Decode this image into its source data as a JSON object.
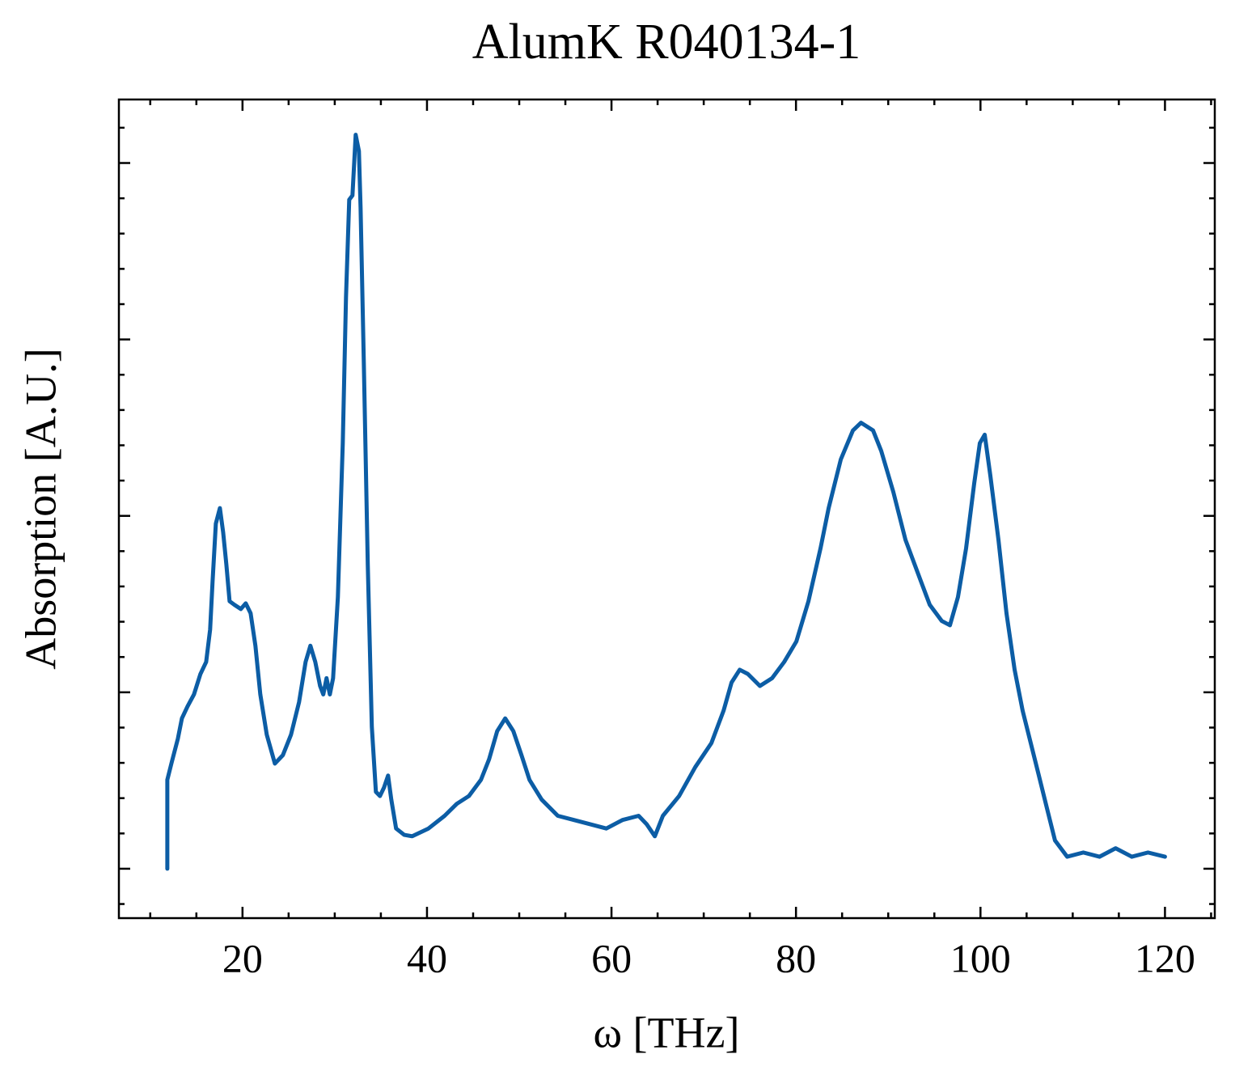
{
  "chart_data": {
    "type": "line",
    "title": "AlumK R040134-1",
    "x_label": "ω [THz]",
    "y_label": "Absorption [A.U.]",
    "xlim": [
      6.6,
      125.4
    ],
    "ylim": [
      -0.07,
      1.09
    ],
    "xticks": [
      20,
      40,
      60,
      80,
      100,
      120
    ],
    "xminorticks": [
      10,
      15,
      25,
      30,
      35,
      45,
      50,
      55,
      65,
      70,
      75,
      85,
      90,
      95,
      105,
      110,
      115,
      125
    ],
    "yticks": [
      0,
      0.25,
      0.5,
      0.75,
      1
    ],
    "yminorticks": [
      -0.05,
      0.05,
      0.1,
      0.15,
      0.2,
      0.3,
      0.35,
      0.4,
      0.45,
      0.55,
      0.6,
      0.65,
      0.7,
      0.8,
      0.85,
      0.9,
      0.95,
      1.05
    ],
    "y_tick_labels": false,
    "grid": false,
    "series": [
      {
        "color": "#0C5DA5",
        "x": [
          11.85,
          11.85,
          12.29,
          12.99,
          13.43,
          14.04,
          14.74,
          15.44,
          16.06,
          16.49,
          16.76,
          17.11,
          17.55,
          17.9,
          18.25,
          18.6,
          19.12,
          19.82,
          20.35,
          20.88,
          21.4,
          21.93,
          22.63,
          23.51,
          24.38,
          25.26,
          26.13,
          26.84,
          27.36,
          27.89,
          28.41,
          28.76,
          29.11,
          29.47,
          29.82,
          30.34,
          30.87,
          31.22,
          31.57,
          31.92,
          32.27,
          32.62,
          32.8,
          33.15,
          33.58,
          34.02,
          34.46,
          34.9,
          35.34,
          35.78,
          36.13,
          36.65,
          37.53,
          38.4,
          40.16,
          41.91,
          43.23,
          44.54,
          45.85,
          46.73,
          47.61,
          48.48,
          49.36,
          50.24,
          51.11,
          52.43,
          54.18,
          55.93,
          57.69,
          59.44,
          61.19,
          62.94,
          63.82,
          64.7,
          65.57,
          67.33,
          69.08,
          70.83,
          72.15,
          73.02,
          73.9,
          74.78,
          76.09,
          77.41,
          78.72,
          80.04,
          81.35,
          82.66,
          83.54,
          84.86,
          86.17,
          87.05,
          88.36,
          89.24,
          90.55,
          91.87,
          93.18,
          94.5,
          95.81,
          96.69,
          97.56,
          98.44,
          99.32,
          99.93,
          100.46,
          101.07,
          101.95,
          102.82,
          103.7,
          104.57,
          105.45,
          106.33,
          107.2,
          108.08,
          109.4,
          111.15,
          112.9,
          114.65,
          116.41,
          118.16,
          120
        ],
        "values": [
          0,
          0.126,
          0.149,
          0.184,
          0.213,
          0.23,
          0.247,
          0.276,
          0.293,
          0.339,
          0.408,
          0.489,
          0.511,
          0.477,
          0.431,
          0.379,
          0.374,
          0.368,
          0.376,
          0.362,
          0.316,
          0.247,
          0.19,
          0.149,
          0.161,
          0.19,
          0.236,
          0.293,
          0.316,
          0.293,
          0.259,
          0.247,
          0.27,
          0.247,
          0.27,
          0.385,
          0.603,
          0.81,
          0.948,
          0.954,
          1.04,
          1.017,
          0.937,
          0.718,
          0.431,
          0.201,
          0.109,
          0.103,
          0.115,
          0.132,
          0.098,
          0.057,
          0.048,
          0.046,
          0.057,
          0.075,
          0.092,
          0.103,
          0.126,
          0.155,
          0.195,
          0.213,
          0.195,
          0.161,
          0.126,
          0.098,
          0.075,
          0.069,
          0.063,
          0.057,
          0.069,
          0.075,
          0.063,
          0.046,
          0.075,
          0.103,
          0.144,
          0.178,
          0.224,
          0.264,
          0.282,
          0.276,
          0.259,
          0.27,
          0.293,
          0.322,
          0.379,
          0.454,
          0.511,
          0.58,
          0.621,
          0.632,
          0.621,
          0.592,
          0.534,
          0.466,
          0.42,
          0.374,
          0.351,
          0.345,
          0.385,
          0.454,
          0.546,
          0.603,
          0.615,
          0.557,
          0.466,
          0.362,
          0.282,
          0.224,
          0.178,
          0.132,
          0.086,
          0.04,
          0.017,
          0.023,
          0.017,
          0.029,
          0.017,
          0.023,
          0.017
        ]
      }
    ]
  }
}
